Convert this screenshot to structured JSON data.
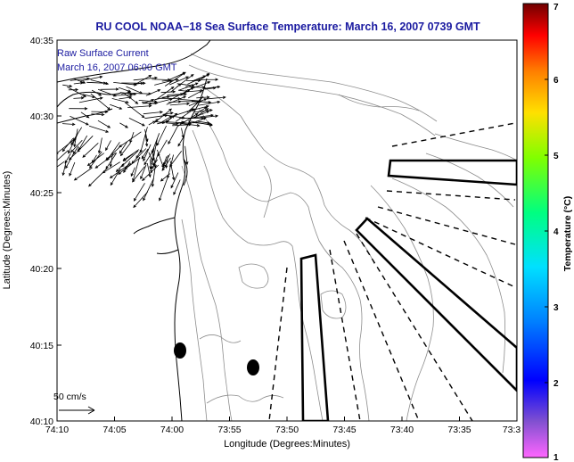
{
  "title": "RU COOL  NOAA−18  Sea Surface Temperature:  March 16, 2007 0739 GMT",
  "annotation": {
    "line1": "Raw Surface Current",
    "line2": "March 16, 2007 06:00 GMT"
  },
  "scale_label": "50 cm/s",
  "axes": {
    "xlabel": "Longitude (Degrees:Minutes)",
    "ylabel": "Latitude (Degrees:Minutes)",
    "xticks": [
      "74:10",
      "74:05",
      "74:00",
      "73:55",
      "73:50",
      "73:45",
      "73:40",
      "73:35",
      "73:3"
    ],
    "yticks": [
      "40:35",
      "40:30",
      "40:25",
      "40:20",
      "40:15",
      "40:10"
    ]
  },
  "colorbar": {
    "label": "Temperature (°C)",
    "ticks": [
      "7",
      "6",
      "5",
      "4",
      "3",
      "2",
      "1"
    ],
    "range": [
      1,
      7
    ]
  },
  "colors": {
    "title": "#1a1aa0",
    "annotation": "#1a1aa0",
    "land_outline": "#000000",
    "bathymetry": "#8c8c8c"
  }
}
